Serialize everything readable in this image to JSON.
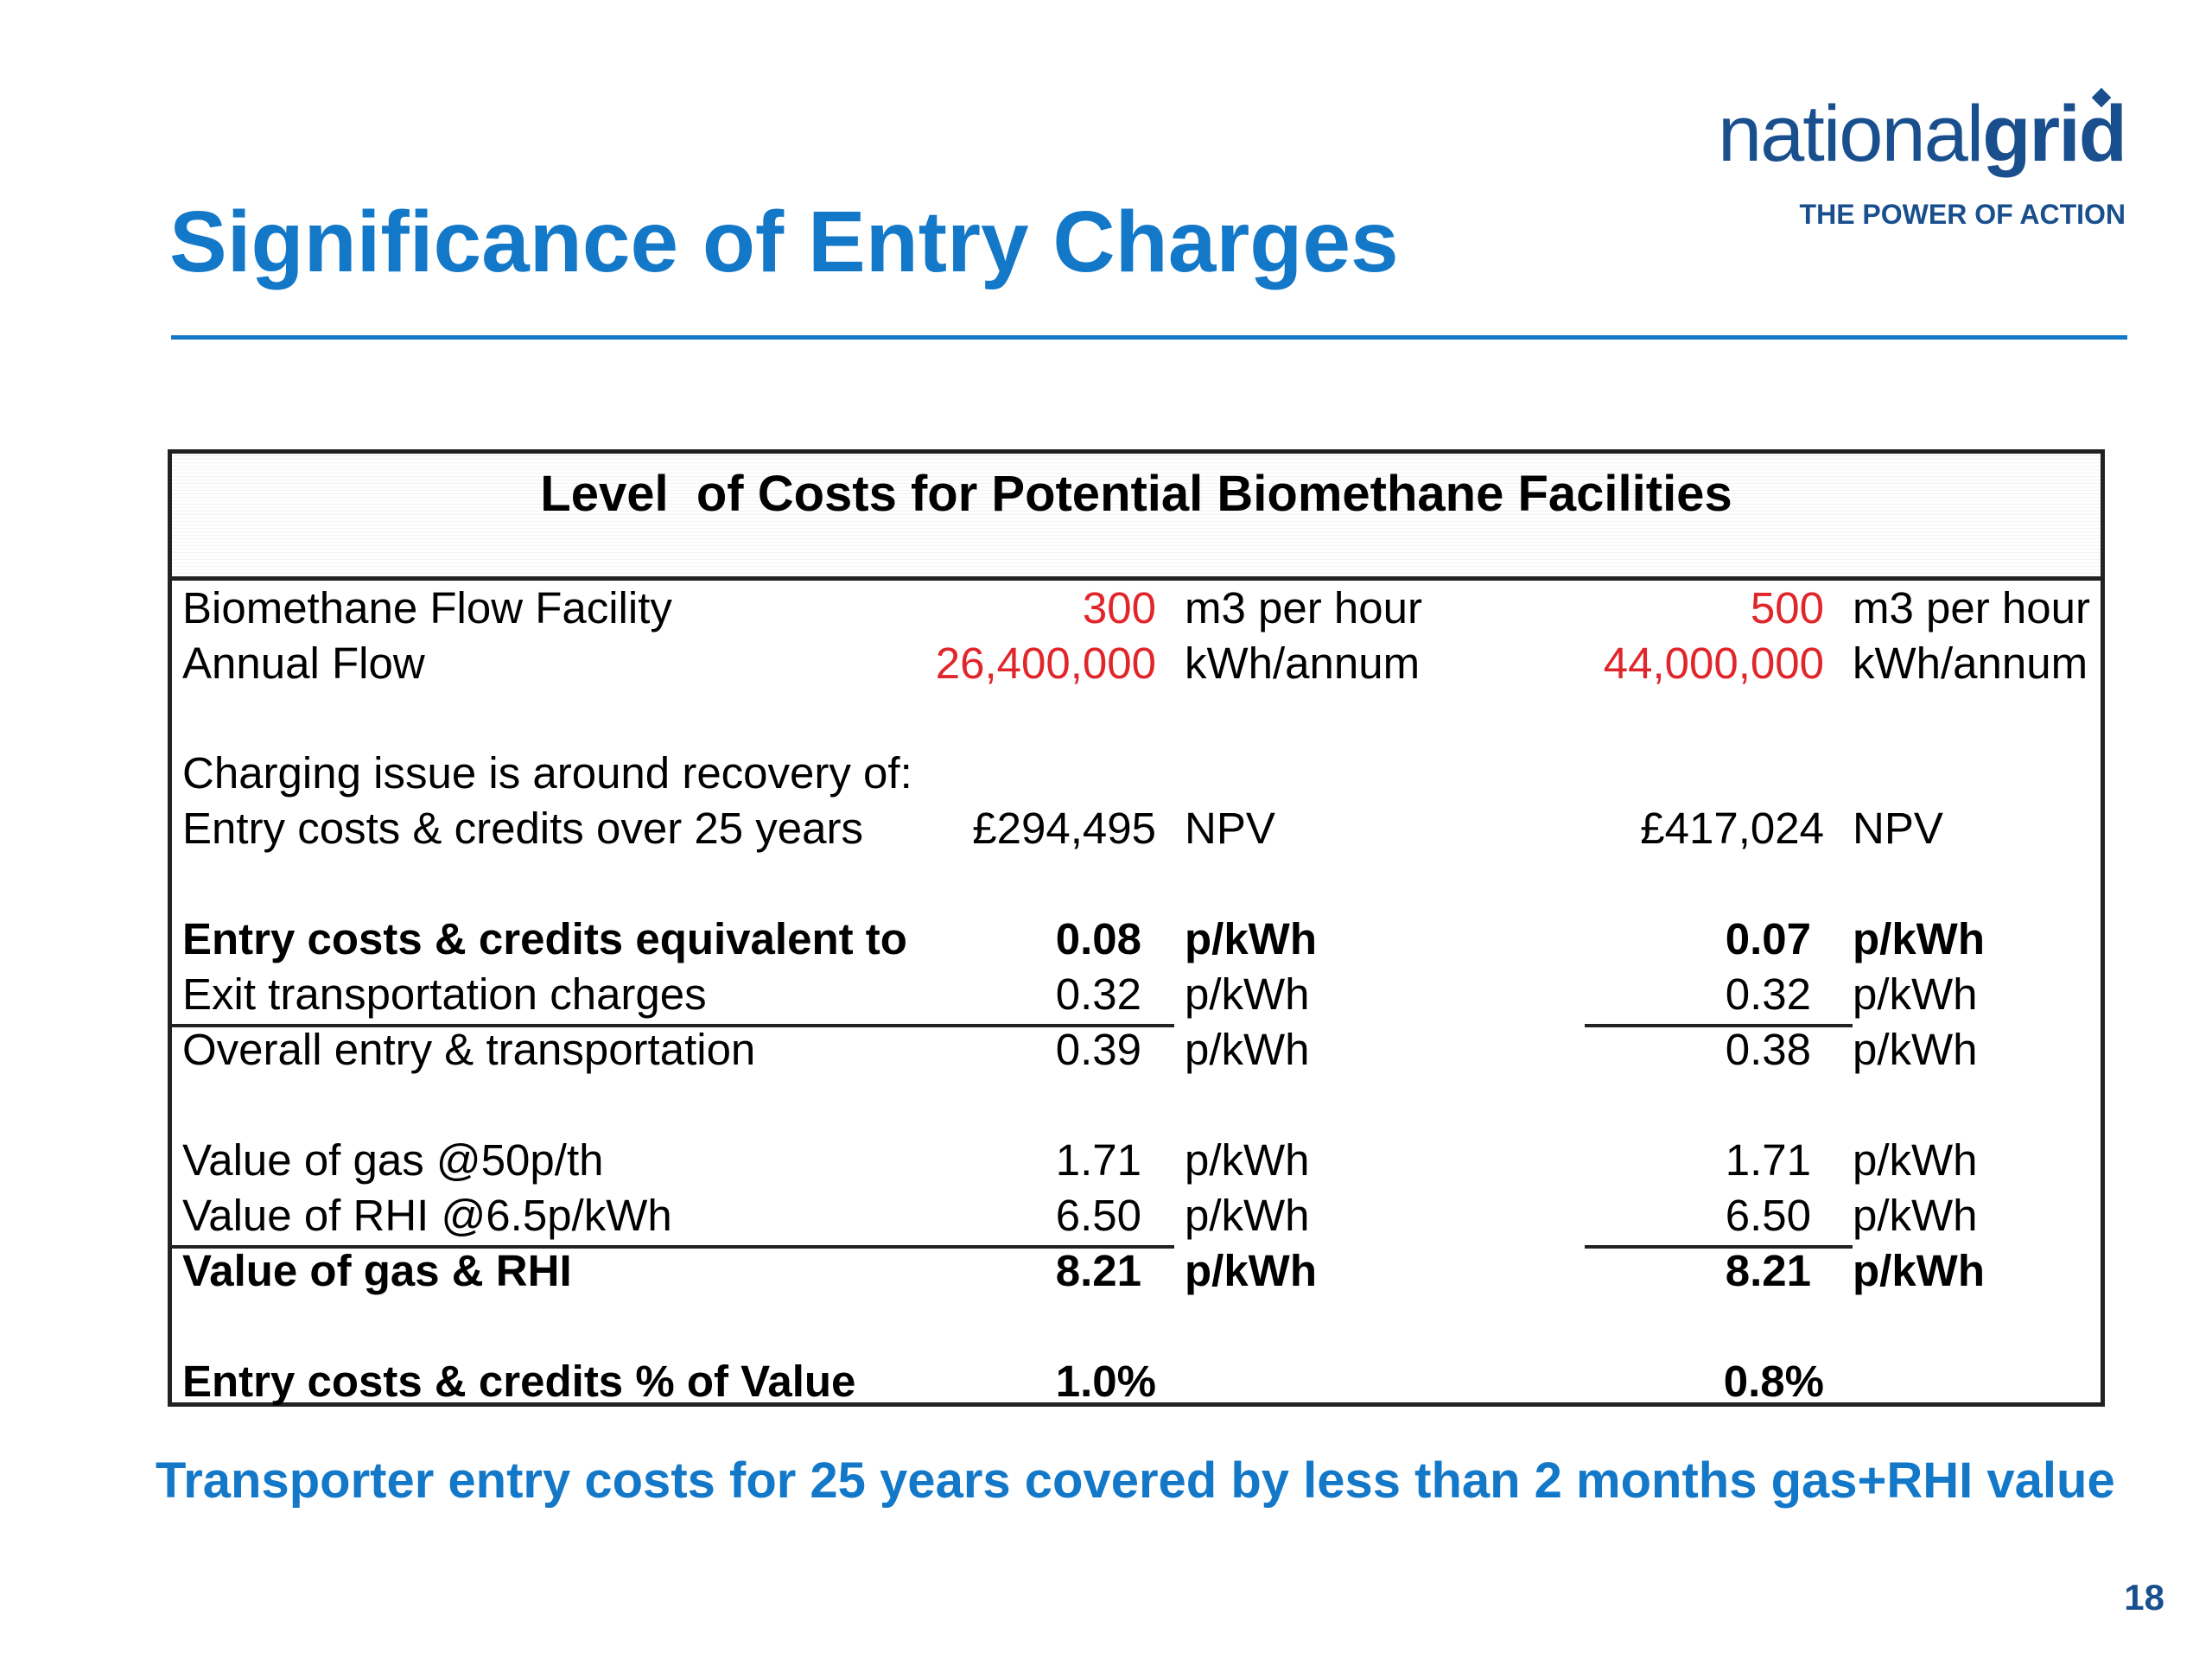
{
  "slide": {
    "title": "Significance of Entry Charges",
    "footnote": "Transporter entry costs for 25 years covered by less than 2 months gas+RHI value",
    "page_number": "18"
  },
  "logo": {
    "word_light": "national",
    "word_bold": "grid",
    "tagline": "THE POWER OF ACTION"
  },
  "table": {
    "title": "Level  of Costs for Potential Biomethane Facilities",
    "rows": [
      {
        "label": "Biomethane Flow Facility",
        "v1": "300",
        "u1": "m3 per hour",
        "v2": "500",
        "u2": "m3 per hour"
      },
      {
        "label": "Annual Flow",
        "v1": "26,400,000",
        "u1": "kWh/annum",
        "v2": "44,000,000",
        "u2": "kWh/annum"
      },
      {
        "label": "Charging issue is around recovery of:"
      },
      {
        "label": "Entry costs & credits over 25 years",
        "v1": "£294,495",
        "u1": "NPV",
        "v2": "£417,024",
        "u2": "NPV"
      },
      {
        "label": "Entry costs & credits equivalent to",
        "v1": "0.08",
        "u1": "p/kWh",
        "v2": "0.07",
        "u2": "p/kWh"
      },
      {
        "label": "Exit transportation charges",
        "v1": "0.32",
        "u1": "p/kWh",
        "v2": "0.32",
        "u2": "p/kWh"
      },
      {
        "label": "Overall entry & transportation",
        "v1": "0.39",
        "u1": "p/kWh",
        "v2": "0.38",
        "u2": "p/kWh"
      },
      {
        "label": "Value of gas @50p/th",
        "v1": "1.71",
        "u1": "p/kWh",
        "v2": "1.71",
        "u2": "p/kWh"
      },
      {
        "label": "Value of RHI @6.5p/kWh",
        "v1": "6.50",
        "u1": "p/kWh",
        "v2": "6.50",
        "u2": "p/kWh"
      },
      {
        "label": "Value of gas & RHI",
        "v1": "8.21",
        "u1": "p/kWh",
        "v2": "8.21",
        "u2": "p/kWh"
      },
      {
        "label": "Entry costs & credits % of Value",
        "v1": "1.0%",
        "v2": "0.8%"
      }
    ]
  },
  "colors": {
    "accent_blue": "#1478c8",
    "logo_blue": "#1a4f8e",
    "input_red": "#e0262b"
  }
}
